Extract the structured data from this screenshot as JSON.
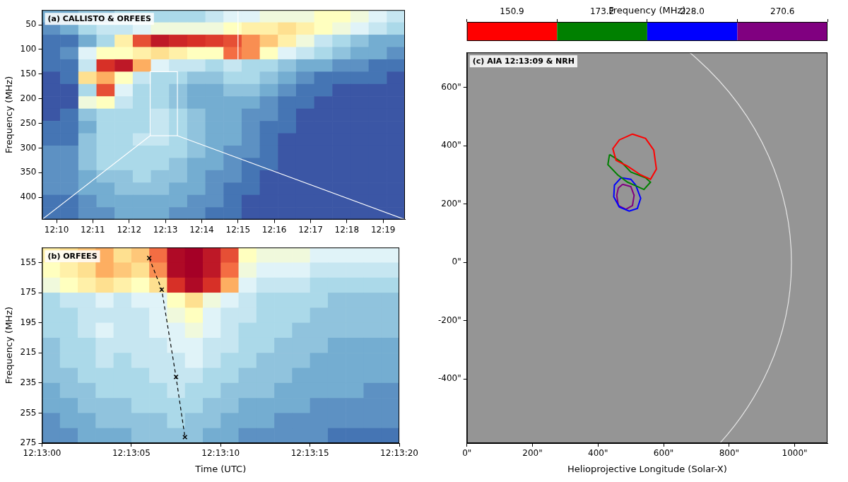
{
  "chart_data": [
    {
      "type": "heatmap",
      "title": "(a) CALLISTO & ORFEES",
      "y_label": "Frequency (MHz)",
      "xlim": [
        9.6,
        19.6
      ],
      "xticks": [
        {
          "value": 10,
          "label": "12:10"
        },
        {
          "value": 11,
          "label": "12:11"
        },
        {
          "value": 12,
          "label": "12:12"
        },
        {
          "value": 13,
          "label": "12:13"
        },
        {
          "value": 14,
          "label": "12:14"
        },
        {
          "value": 15,
          "label": "12:15"
        },
        {
          "value": 16,
          "label": "12:16"
        },
        {
          "value": 17,
          "label": "12:17"
        },
        {
          "value": 18,
          "label": "12:18"
        },
        {
          "value": 19,
          "label": "12:19"
        }
      ],
      "ylim": [
        445,
        20
      ],
      "yticks": [
        50,
        100,
        150,
        200,
        250,
        300,
        350,
        400
      ],
      "grid": false,
      "x_edges": [
        9.6,
        10.1,
        10.6,
        11.1,
        11.6,
        12.1,
        12.6,
        13.1,
        13.6,
        14.1,
        14.6,
        15.1,
        15.6,
        16.1,
        16.6,
        17.1,
        17.6,
        18.1,
        18.6,
        19.1,
        19.6
      ],
      "y_edges": [
        20,
        45,
        70,
        95,
        120,
        145,
        170,
        195,
        220,
        245,
        270,
        295,
        320,
        345,
        370,
        395,
        420,
        445
      ],
      "zlim": [
        0,
        1
      ],
      "z": [
        [
          0.2,
          0.2,
          0.25,
          0.25,
          0.3,
          0.3,
          0.3,
          0.3,
          0.3,
          0.35,
          0.4,
          0.4,
          0.45,
          0.45,
          0.45,
          0.5,
          0.5,
          0.45,
          0.4,
          0.35
        ],
        [
          0.15,
          0.2,
          0.3,
          0.35,
          0.35,
          0.4,
          0.45,
          0.45,
          0.45,
          0.45,
          0.5,
          0.55,
          0.55,
          0.6,
          0.55,
          0.5,
          0.45,
          0.4,
          0.35,
          0.3
        ],
        [
          0.1,
          0.1,
          0.2,
          0.3,
          0.55,
          0.85,
          0.95,
          0.92,
          0.9,
          0.88,
          0.85,
          0.75,
          0.65,
          0.55,
          0.45,
          0.35,
          0.3,
          0.25,
          0.2,
          0.2
        ],
        [
          0.1,
          0.15,
          0.4,
          0.5,
          0.5,
          0.55,
          0.6,
          0.55,
          0.5,
          0.5,
          0.8,
          0.75,
          0.5,
          0.4,
          0.35,
          0.3,
          0.25,
          0.2,
          0.2,
          0.15
        ],
        [
          0.1,
          0.1,
          0.35,
          0.9,
          0.95,
          0.7,
          0.4,
          0.35,
          0.35,
          0.3,
          0.35,
          0.3,
          0.3,
          0.25,
          0.2,
          0.2,
          0.15,
          0.15,
          0.1,
          0.1
        ],
        [
          0.05,
          0.1,
          0.6,
          0.7,
          0.5,
          0.35,
          0.3,
          0.3,
          0.25,
          0.25,
          0.3,
          0.3,
          0.25,
          0.2,
          0.15,
          0.1,
          0.1,
          0.1,
          0.1,
          0.05
        ],
        [
          0.05,
          0.05,
          0.3,
          0.85,
          0.4,
          0.3,
          0.3,
          0.25,
          0.2,
          0.2,
          0.25,
          0.25,
          0.2,
          0.15,
          0.1,
          0.1,
          0.05,
          0.05,
          0.05,
          0.05
        ],
        [
          0.05,
          0.05,
          0.45,
          0.5,
          0.35,
          0.3,
          0.3,
          0.25,
          0.2,
          0.2,
          0.2,
          0.2,
          0.15,
          0.1,
          0.1,
          0.05,
          0.05,
          0.05,
          0.05,
          0.05
        ],
        [
          0.05,
          0.1,
          0.25,
          0.3,
          0.3,
          0.3,
          0.35,
          0.3,
          0.25,
          0.2,
          0.2,
          0.15,
          0.15,
          0.1,
          0.05,
          0.05,
          0.05,
          0.05,
          0.05,
          0.05
        ],
        [
          0.1,
          0.1,
          0.2,
          0.3,
          0.3,
          0.3,
          0.35,
          0.3,
          0.25,
          0.2,
          0.2,
          0.15,
          0.1,
          0.1,
          0.05,
          0.05,
          0.05,
          0.05,
          0.05,
          0.05
        ],
        [
          0.1,
          0.1,
          0.25,
          0.3,
          0.3,
          0.35,
          0.35,
          0.3,
          0.25,
          0.2,
          0.2,
          0.15,
          0.1,
          0.05,
          0.05,
          0.05,
          0.05,
          0.05,
          0.05,
          0.05
        ],
        [
          0.15,
          0.15,
          0.25,
          0.3,
          0.3,
          0.3,
          0.3,
          0.3,
          0.25,
          0.2,
          0.15,
          0.15,
          0.1,
          0.05,
          0.05,
          0.05,
          0.05,
          0.05,
          0.05,
          0.05
        ],
        [
          0.15,
          0.15,
          0.25,
          0.3,
          0.3,
          0.3,
          0.3,
          0.25,
          0.2,
          0.2,
          0.15,
          0.1,
          0.1,
          0.05,
          0.05,
          0.05,
          0.05,
          0.05,
          0.05,
          0.05
        ],
        [
          0.15,
          0.15,
          0.2,
          0.25,
          0.25,
          0.3,
          0.25,
          0.25,
          0.2,
          0.15,
          0.15,
          0.1,
          0.05,
          0.05,
          0.05,
          0.05,
          0.05,
          0.05,
          0.05,
          0.05
        ],
        [
          0.15,
          0.15,
          0.2,
          0.2,
          0.25,
          0.25,
          0.25,
          0.2,
          0.2,
          0.15,
          0.1,
          0.1,
          0.05,
          0.05,
          0.05,
          0.05,
          0.05,
          0.05,
          0.05,
          0.05
        ],
        [
          0.1,
          0.1,
          0.15,
          0.2,
          0.2,
          0.2,
          0.2,
          0.2,
          0.15,
          0.15,
          0.1,
          0.05,
          0.05,
          0.05,
          0.05,
          0.05,
          0.05,
          0.05,
          0.05,
          0.05
        ],
        [
          0.1,
          0.1,
          0.15,
          0.15,
          0.2,
          0.2,
          0.2,
          0.15,
          0.15,
          0.1,
          0.1,
          0.05,
          0.05,
          0.05,
          0.05,
          0.05,
          0.05,
          0.05,
          0.05,
          0.05
        ]
      ],
      "zoom_box": {
        "x": [
          12.58,
          13.33
        ],
        "y": [
          145,
          275
        ]
      },
      "vline": {
        "x": 15,
        "y": [
          20,
          120
        ]
      }
    },
    {
      "type": "heatmap",
      "title": "(b) ORFEES",
      "x_label": "Time (UTC)",
      "y_label": "Frequency (MHz)",
      "xlim": [
        0,
        20
      ],
      "xticks": [
        {
          "value": 0,
          "label": "12:13:00"
        },
        {
          "value": 5,
          "label": "12:13:05"
        },
        {
          "value": 10,
          "label": "12:13:10"
        },
        {
          "value": 15,
          "label": "12:13:15"
        },
        {
          "value": 20,
          "label": "12:13:20"
        }
      ],
      "ylim": [
        275,
        145
      ],
      "yticks": [
        155,
        175,
        195,
        215,
        235,
        255,
        275
      ],
      "grid": false,
      "x_edges": [
        0,
        1,
        2,
        3,
        4,
        5,
        6,
        7,
        8,
        9,
        10,
        11,
        12,
        13,
        14,
        15,
        16,
        17,
        18,
        19,
        20
      ],
      "y_edges": [
        145,
        155,
        165,
        175,
        185,
        195,
        205,
        215,
        225,
        235,
        245,
        255,
        265,
        275
      ],
      "zlim": [
        0,
        1
      ],
      "z": [
        [
          0.55,
          0.6,
          0.65,
          0.7,
          0.6,
          0.65,
          0.8,
          0.98,
          1,
          0.95,
          0.85,
          0.5,
          0.45,
          0.45,
          0.45,
          0.4,
          0.4,
          0.4,
          0.4,
          0.4
        ],
        [
          0.5,
          0.55,
          0.6,
          0.7,
          0.65,
          0.6,
          0.75,
          0.98,
          1,
          0.95,
          0.8,
          0.45,
          0.4,
          0.4,
          0.4,
          0.35,
          0.35,
          0.35,
          0.35,
          0.35
        ],
        [
          0.45,
          0.5,
          0.55,
          0.6,
          0.55,
          0.5,
          0.6,
          0.9,
          0.98,
          0.9,
          0.7,
          0.4,
          0.35,
          0.35,
          0.35,
          0.3,
          0.3,
          0.3,
          0.3,
          0.3
        ],
        [
          0.3,
          0.35,
          0.35,
          0.4,
          0.35,
          0.4,
          0.4,
          0.5,
          0.6,
          0.45,
          0.4,
          0.35,
          0.3,
          0.3,
          0.3,
          0.3,
          0.25,
          0.25,
          0.25,
          0.25
        ],
        [
          0.3,
          0.3,
          0.35,
          0.35,
          0.35,
          0.35,
          0.4,
          0.45,
          0.5,
          0.4,
          0.35,
          0.35,
          0.3,
          0.3,
          0.3,
          0.25,
          0.25,
          0.25,
          0.25,
          0.25
        ],
        [
          0.3,
          0.3,
          0.35,
          0.4,
          0.35,
          0.35,
          0.4,
          0.4,
          0.45,
          0.4,
          0.35,
          0.3,
          0.3,
          0.3,
          0.25,
          0.25,
          0.25,
          0.25,
          0.25,
          0.25
        ],
        [
          0.25,
          0.3,
          0.3,
          0.35,
          0.35,
          0.35,
          0.35,
          0.4,
          0.4,
          0.35,
          0.35,
          0.3,
          0.3,
          0.25,
          0.25,
          0.25,
          0.2,
          0.2,
          0.2,
          0.2
        ],
        [
          0.25,
          0.3,
          0.3,
          0.35,
          0.3,
          0.35,
          0.35,
          0.35,
          0.4,
          0.35,
          0.3,
          0.3,
          0.25,
          0.25,
          0.25,
          0.2,
          0.2,
          0.2,
          0.2,
          0.2
        ],
        [
          0.25,
          0.25,
          0.3,
          0.3,
          0.3,
          0.3,
          0.35,
          0.35,
          0.35,
          0.3,
          0.3,
          0.25,
          0.25,
          0.25,
          0.2,
          0.2,
          0.2,
          0.2,
          0.2,
          0.2
        ],
        [
          0.2,
          0.25,
          0.25,
          0.3,
          0.3,
          0.3,
          0.3,
          0.35,
          0.3,
          0.3,
          0.25,
          0.25,
          0.25,
          0.2,
          0.2,
          0.2,
          0.2,
          0.2,
          0.15,
          0.15
        ],
        [
          0.2,
          0.2,
          0.25,
          0.25,
          0.25,
          0.3,
          0.3,
          0.3,
          0.3,
          0.25,
          0.25,
          0.2,
          0.2,
          0.2,
          0.2,
          0.15,
          0.15,
          0.15,
          0.15,
          0.15
        ],
        [
          0.15,
          0.2,
          0.2,
          0.25,
          0.25,
          0.25,
          0.25,
          0.3,
          0.25,
          0.25,
          0.2,
          0.2,
          0.2,
          0.15,
          0.15,
          0.15,
          0.15,
          0.15,
          0.15,
          0.15
        ],
        [
          0.15,
          0.15,
          0.2,
          0.2,
          0.2,
          0.25,
          0.25,
          0.25,
          0.25,
          0.2,
          0.2,
          0.15,
          0.15,
          0.15,
          0.15,
          0.15,
          0.1,
          0.1,
          0.1,
          0.1
        ]
      ],
      "series": [
        {
          "color": "#000000",
          "marker": "x",
          "line_style": "dashed",
          "x": [
            6.0,
            6.7,
            7.5,
            8.0
          ],
          "values": [
            152,
            173,
            231,
            271
          ]
        }
      ]
    },
    {
      "type": "line",
      "title": "(c) AIA 12:13:09 & NRH",
      "x_label": "Helioprojective Longitude (Solar-X)",
      "xlim": [
        0,
        1100
      ],
      "xticks": [
        {
          "value": 0,
          "label": "0\""
        },
        {
          "value": 200,
          "label": "200\""
        },
        {
          "value": 400,
          "label": "400\""
        },
        {
          "value": 600,
          "label": "600\""
        },
        {
          "value": 800,
          "label": "800\""
        },
        {
          "value": 1000,
          "label": "1000\""
        }
      ],
      "ylim": [
        -620,
        720
      ],
      "yticks": [
        {
          "value": -400,
          "label": "-400\""
        },
        {
          "value": -200,
          "label": "-200\""
        },
        {
          "value": 0,
          "label": "0\""
        },
        {
          "value": 200,
          "label": "200\""
        },
        {
          "value": 400,
          "label": "400\""
        },
        {
          "value": 600,
          "label": "600\""
        }
      ],
      "grid": false,
      "legend": "top",
      "limb_radius": 990,
      "colorbar": {
        "label": "Frequency (MHz)"
      },
      "series": [
        {
          "name": "150.9",
          "color": "#ff0000",
          "x": [
            505,
            545,
            570,
            578,
            560,
            530,
            490,
            455,
            445,
            465,
            505
          ],
          "values": [
            440,
            425,
            385,
            320,
            285,
            300,
            330,
            350,
            390,
            420,
            440
          ]
        },
        {
          "name": "173.2",
          "color": "#008000",
          "x": [
            435,
            470,
            500,
            545,
            560,
            540,
            510,
            490,
            460,
            430,
            435
          ],
          "values": [
            370,
            345,
            310,
            290,
            275,
            250,
            265,
            275,
            300,
            335,
            370
          ]
        },
        {
          "name": "228.0",
          "color": "#0000ff",
          "x": [
            470,
            500,
            515,
            530,
            520,
            495,
            465,
            448,
            450,
            470
          ],
          "values": [
            290,
            285,
            265,
            220,
            185,
            176,
            190,
            225,
            265,
            290
          ]
        },
        {
          "name": "270.6",
          "color": "#800080",
          "x": [
            475,
            500,
            510,
            505,
            485,
            462,
            457,
            462,
            475
          ],
          "values": [
            268,
            260,
            230,
            195,
            182,
            195,
            230,
            255,
            268
          ]
        }
      ]
    }
  ]
}
